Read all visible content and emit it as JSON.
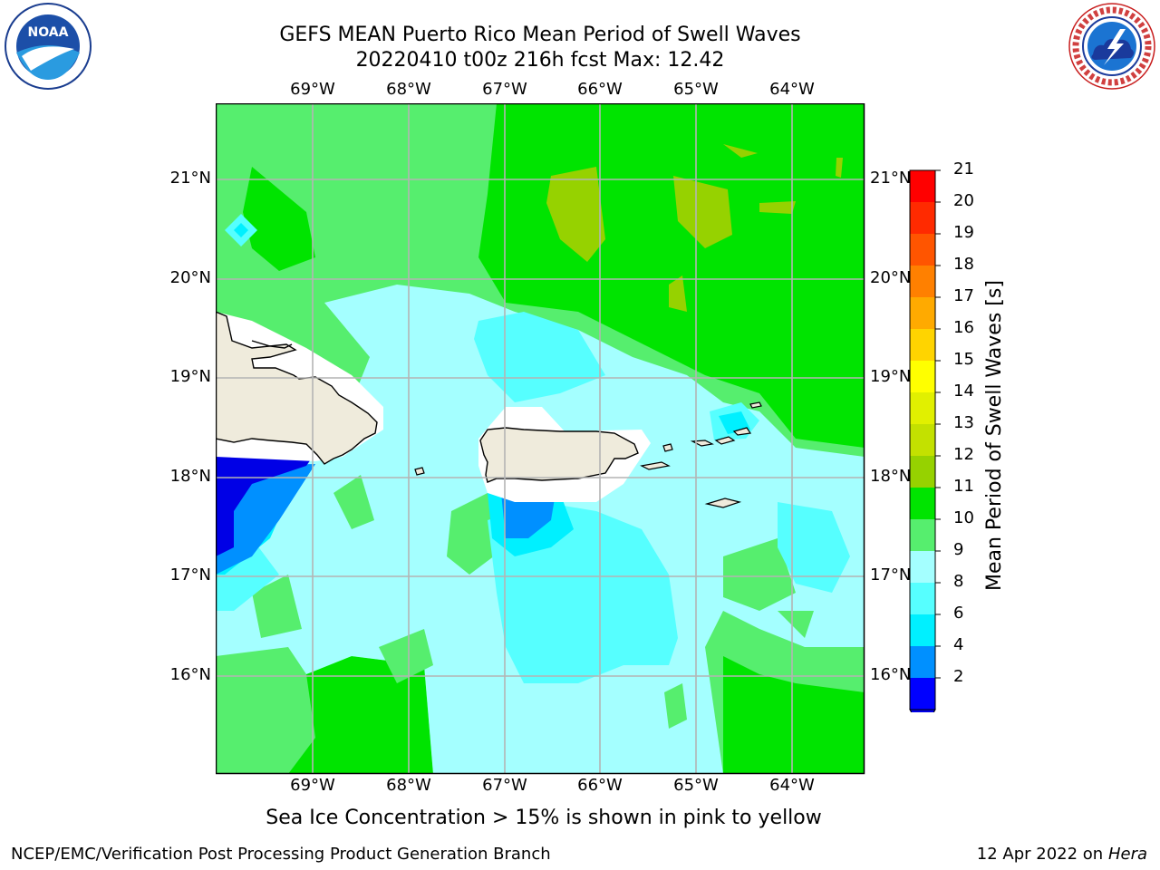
{
  "header": {
    "title_line1": "GEFS MEAN Puerto Rico Mean Period of Swell Waves",
    "title_line2": "20220410 t00z 216h fcst   Max: 12.42"
  },
  "logos": {
    "left": "noaa-logo",
    "right": "national-weather-service-logo",
    "left_text": "NOAA",
    "right_text": "NATIONAL WEATHER SERVICE"
  },
  "map": {
    "region": "Puerto Rico",
    "lon_labels": [
      "69°W",
      "68°W",
      "67°W",
      "66°W",
      "65°W",
      "64°W"
    ],
    "lat_labels": [
      "21°N",
      "20°N",
      "19°N",
      "18°N",
      "17°N",
      "16°N"
    ],
    "grid": true,
    "colors": {
      "land": "#efebdc",
      "gridline": "#b4b4b4"
    }
  },
  "colorbar": {
    "label": "Mean Period of Swell Waves [s]",
    "ticks": [
      "21",
      "20",
      "19",
      "18",
      "17",
      "16",
      "15",
      "14",
      "13",
      "12",
      "11",
      "10",
      "9",
      "8",
      "6",
      "4",
      "2"
    ],
    "colors_top_to_bottom": [
      "#ff0000",
      "#ff2a00",
      "#ff5500",
      "#ff8000",
      "#ffaa00",
      "#ffd400",
      "#ffff00",
      "#e1f000",
      "#c3e100",
      "#96d200",
      "#00e400",
      "#56ee6e",
      "#a4ffff",
      "#56ffff",
      "#00f0ff",
      "#0090ff",
      "#0000ff"
    ],
    "extend": "min",
    "extend_color": "#0000e6"
  },
  "footer": {
    "note": "Sea Ice Concentration > 15% is shown in pink to yellow",
    "credit": "NCEP/EMC/Verification Post Processing Product Generation Branch",
    "date_prefix": "12 Apr 2022 on ",
    "machine": "Hera"
  }
}
